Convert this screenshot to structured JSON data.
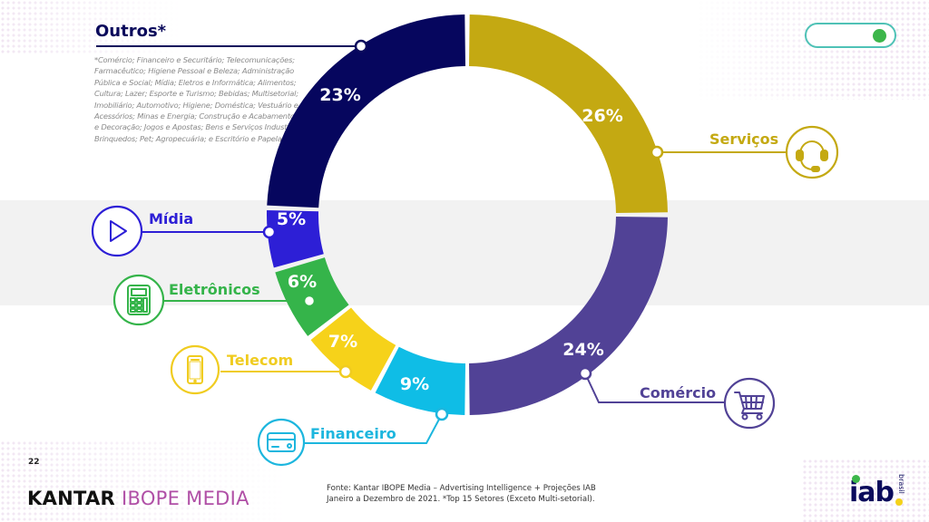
{
  "page": {
    "page_number": "22",
    "source_line1": "Fonte: Kantar IBOPE Media – Advertising Intelligence + Projeções IAB",
    "source_line2": "Janeiro a Dezembro de 2021. *Top 15 Setores (Exceto Multi-setorial).",
    "brand_left_part1": "KANTAR",
    "brand_left_part2": "IBOPE MEDIA",
    "brand_right": "iab",
    "brand_right_sub": "brasil",
    "toggle_state": "on"
  },
  "outros_note": "*Comércio; Financeiro e Securitário; Telecomunicações; Farmacêutico; Higiene Pessoal e Beleza; Administração Pública e Social; Mídia; Eletros e Informática; Alimentos; Cultura; Lazer; Esporte e Turismo; Bebidas; Multisetorial; Imobiliário; Automotivo; Higiene; Doméstica; Vestuário e Acessórios; Minas e Energia; Construção e Acabamentos; Casa e Decoração; Jogos e Apostas; Bens e Serviços Industriais; Brinquedos; Pet; Agropecuária; e Escritório e Papelaria.",
  "chart_data": {
    "type": "pie",
    "variant": "donut",
    "title": "",
    "unit": "%",
    "categories": [
      "Serviços",
      "Comércio",
      "Financeiro",
      "Telecom",
      "Eletrônicos",
      "Mídia",
      "Outros*"
    ],
    "values": [
      26,
      24,
      9,
      7,
      6,
      5,
      23
    ],
    "labels": [
      "26%",
      "24%",
      "9%",
      "7%",
      "6%",
      "5%",
      "23%"
    ],
    "colors": [
      "#c4a912",
      "#514296",
      "#0fbde6",
      "#f6d21a",
      "#35b44a",
      "#2d1fd6",
      "#06065e"
    ],
    "label_colors": [
      "#c4a912",
      "#514296",
      "#1cb6de",
      "#f0cc20",
      "#35b44a",
      "#2d1fd6",
      "#0b0b5c"
    ],
    "icons": [
      "headset-icon",
      "shopping-cart-icon",
      "credit-card-icon",
      "smartphone-icon",
      "calculator-icon",
      "play-icon",
      ""
    ],
    "legend": "callouts-around-donut"
  }
}
